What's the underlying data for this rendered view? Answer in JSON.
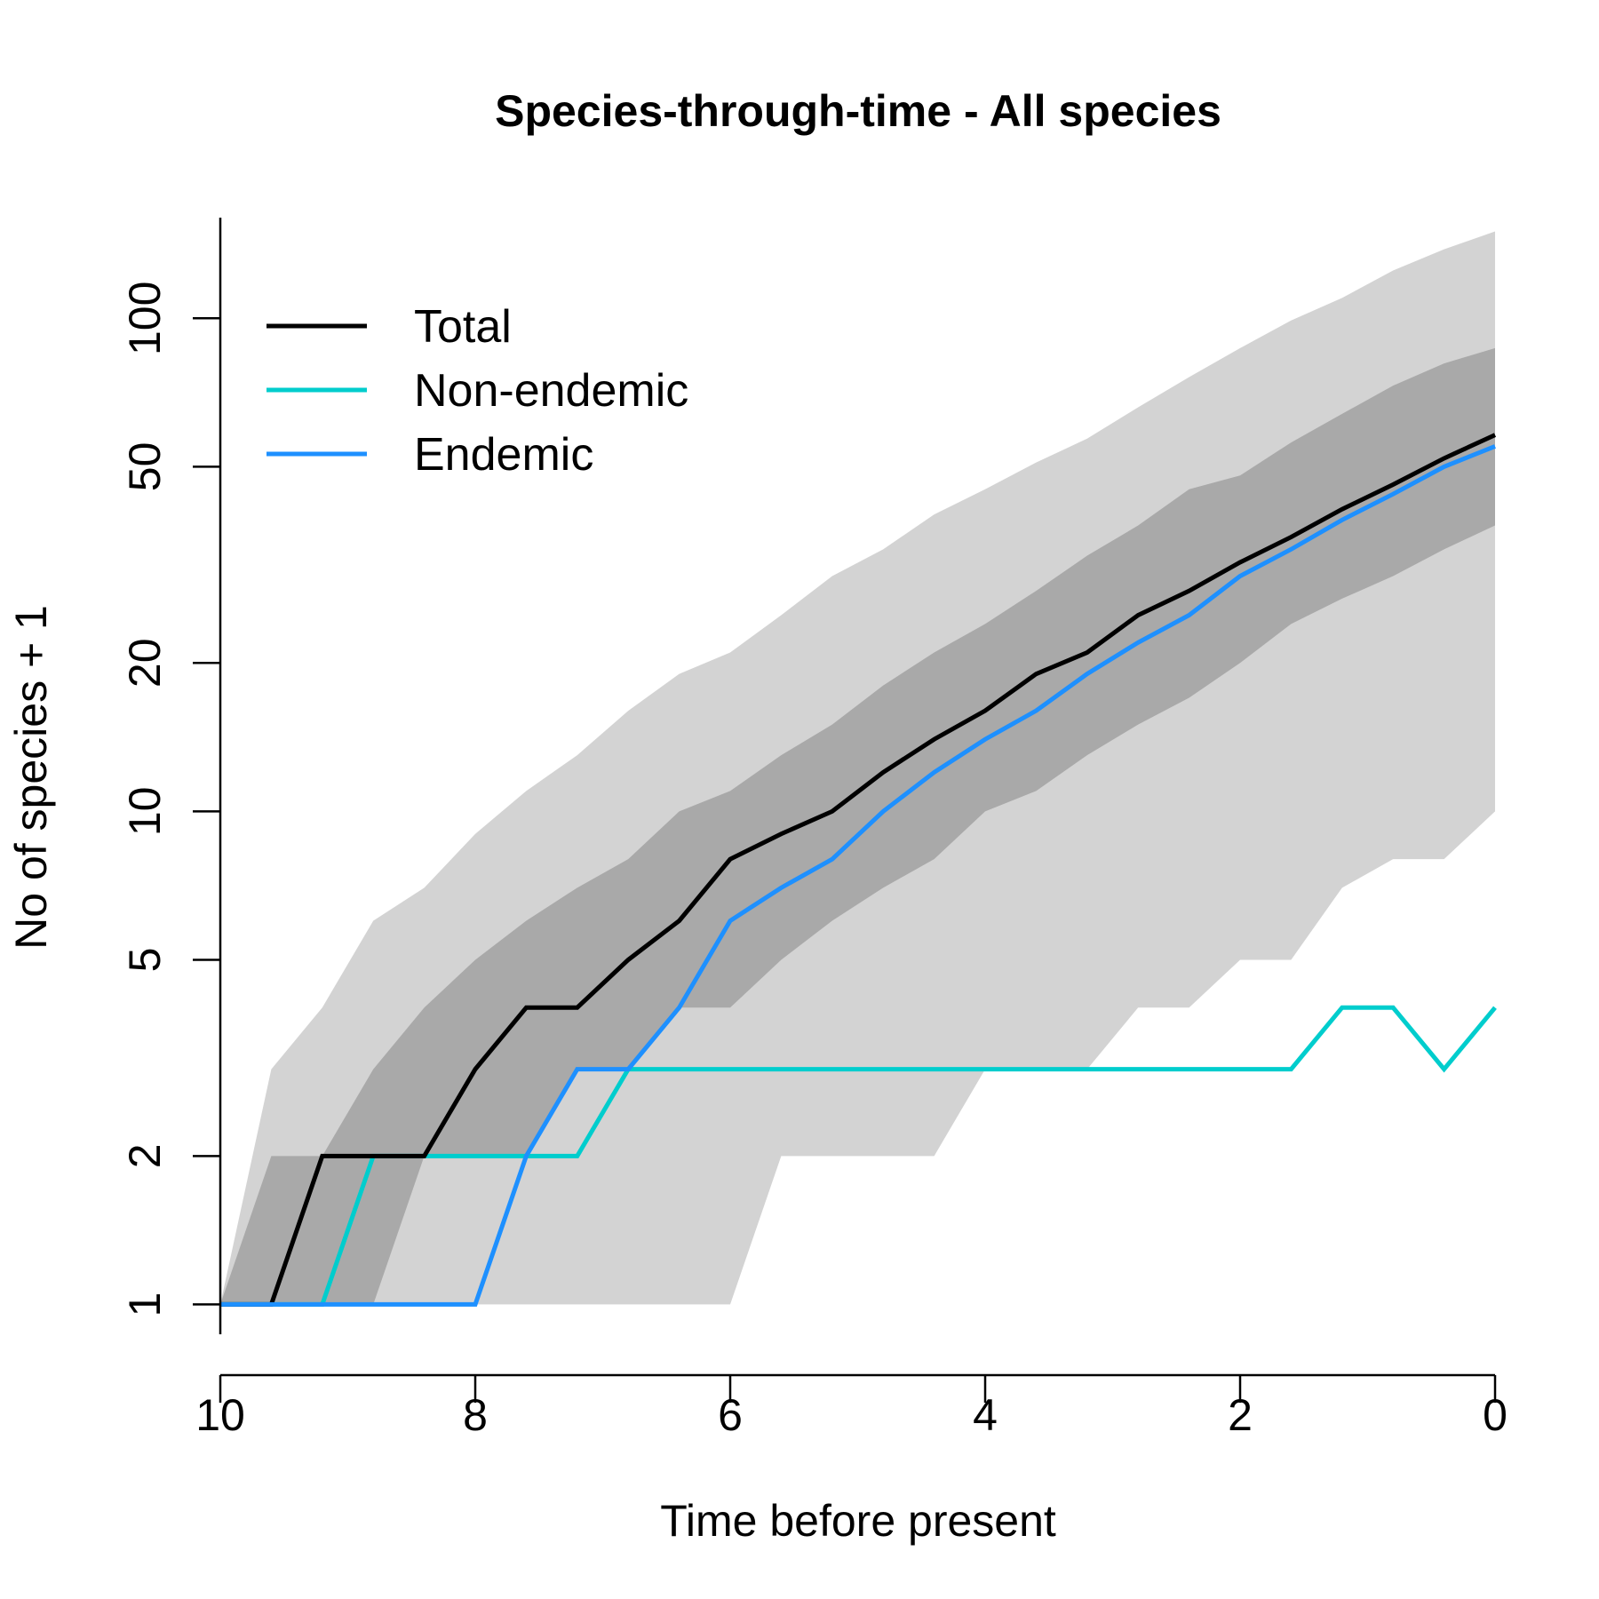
{
  "chart_data": {
    "type": "line",
    "title": "Species-through-time - All species",
    "xlabel": "Time before present",
    "ylabel": "No of species + 1",
    "xlim": [
      10,
      0
    ],
    "ylim": [
      0.87,
      160
    ],
    "y_scale": "log",
    "x_ticks": [
      10,
      8,
      6,
      4,
      2,
      0
    ],
    "y_ticks": [
      1,
      2,
      5,
      10,
      20,
      50,
      100
    ],
    "legend_position": "top-left",
    "x": [
      10,
      9.6,
      9.2,
      8.8,
      8.4,
      8.0,
      7.6,
      7.2,
      6.8,
      6.4,
      6.0,
      5.6,
      5.2,
      4.8,
      4.4,
      4.0,
      3.6,
      3.2,
      2.8,
      2.4,
      2.0,
      1.6,
      1.2,
      0.8,
      0.4,
      0.0
    ],
    "bands": [
      {
        "level": "outer",
        "color": "#d3d3d3",
        "upper": [
          1,
          3,
          4,
          6,
          7,
          9,
          11,
          13,
          16,
          19,
          21,
          25,
          30,
          34,
          40,
          45,
          51,
          57,
          66,
          76,
          87,
          99,
          110,
          125,
          138,
          150
        ],
        "lower": [
          1,
          1,
          1,
          1,
          1,
          1,
          1,
          1,
          1,
          1,
          1,
          2,
          2,
          2,
          2,
          3,
          3,
          3,
          4,
          4,
          5,
          5,
          7,
          8,
          8,
          10
        ]
      },
      {
        "level": "inner",
        "color": "#a9a9a9",
        "upper": [
          1,
          2,
          2,
          3,
          4,
          5,
          6,
          7,
          8,
          10,
          11,
          13,
          15,
          18,
          21,
          24,
          28,
          33,
          38,
          45,
          48,
          56,
          64,
          73,
          81,
          87
        ],
        "lower": [
          1,
          1,
          1,
          1,
          2,
          2,
          2,
          3,
          3,
          4,
          4,
          5,
          6,
          7,
          8,
          10,
          11,
          13,
          15,
          17,
          20,
          24,
          27,
          30,
          34,
          38
        ]
      }
    ],
    "series": [
      {
        "name": "Total",
        "color": "#000000",
        "values": [
          1,
          1,
          2,
          2,
          2,
          3,
          4,
          4,
          5,
          6,
          8,
          9,
          10,
          12,
          14,
          16,
          19,
          21,
          25,
          28,
          32,
          36,
          41,
          46,
          52,
          58
        ]
      },
      {
        "name": "Non-endemic",
        "color": "#00cdcd",
        "values": [
          1,
          1,
          1,
          2,
          2,
          2,
          2,
          2,
          3,
          3,
          3,
          3,
          3,
          3,
          3,
          3,
          3,
          3,
          3,
          3,
          3,
          3,
          4,
          4,
          3,
          4
        ]
      },
      {
        "name": "Endemic",
        "color": "#1e90ff",
        "values": [
          1,
          1,
          1,
          1,
          1,
          1,
          2,
          3,
          3,
          4,
          6,
          7,
          8,
          10,
          12,
          14,
          16,
          19,
          22,
          25,
          30,
          34,
          39,
          44,
          50,
          55
        ]
      }
    ]
  }
}
